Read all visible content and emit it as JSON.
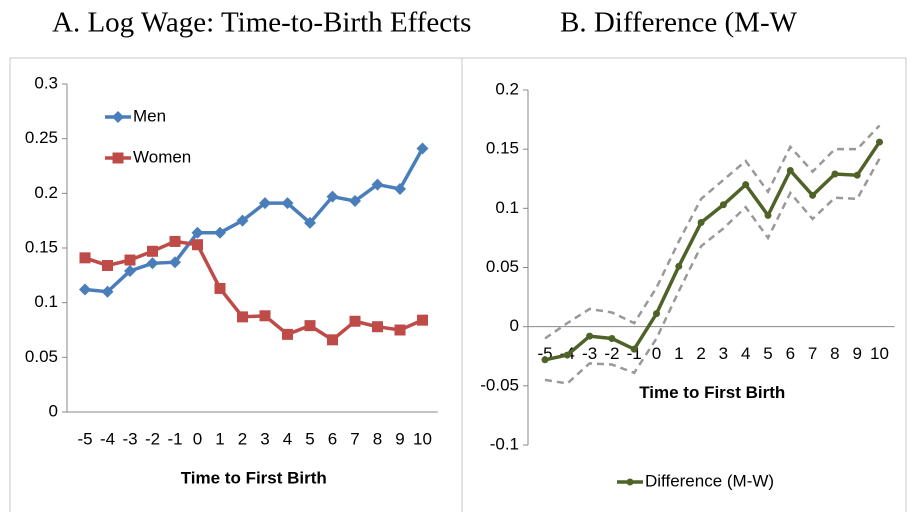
{
  "chart_data": [
    {
      "type": "line",
      "title": "A. Log Wage: Time-to-Birth Effects",
      "xlabel": "Time to First Birth",
      "categories": [
        "-5",
        "-4",
        "-3",
        "-2",
        "-1",
        "0",
        "1",
        "2",
        "3",
        "4",
        "5",
        "6",
        "7",
        "8",
        "9",
        "10"
      ],
      "series": [
        {
          "name": "Men",
          "color": "#4a7ebb",
          "marker": "diamond",
          "dashed": false,
          "values": [
            0.112,
            0.11,
            0.129,
            0.136,
            0.137,
            0.164,
            0.164,
            0.175,
            0.191,
            0.191,
            0.173,
            0.197,
            0.193,
            0.208,
            0.204,
            0.241
          ]
        },
        {
          "name": "Women",
          "color": "#be4b48",
          "marker": "square",
          "dashed": false,
          "values": [
            0.141,
            0.134,
            0.139,
            0.147,
            0.156,
            0.153,
            0.113,
            0.087,
            0.088,
            0.071,
            0.079,
            0.066,
            0.083,
            0.078,
            0.075,
            0.084
          ]
        }
      ],
      "ylim": [
        0,
        0.3
      ],
      "yticks": [
        0,
        0.05,
        0.1,
        0.15,
        0.2,
        0.25,
        0.3
      ],
      "grid": false,
      "legend": "upper left"
    },
    {
      "type": "line",
      "title": "B. Difference (M-W",
      "xlabel": "Time to First Birth",
      "categories": [
        "-5",
        "-4",
        "-3",
        "-2",
        "-1",
        "0",
        "1",
        "2",
        "3",
        "4",
        "5",
        "6",
        "7",
        "8",
        "9",
        "10"
      ],
      "series": [
        {
          "color": "#999999",
          "marker": "none",
          "dashed": true,
          "values": [
            -0.01,
            0.003,
            0.015,
            0.012,
            0.003,
            0.033,
            0.072,
            0.108,
            0.124,
            0.14,
            0.114,
            0.152,
            0.131,
            0.15,
            0.15,
            0.17
          ]
        },
        {
          "color": "#999999",
          "marker": "none",
          "dashed": true,
          "values": [
            -0.045,
            -0.048,
            -0.031,
            -0.032,
            -0.039,
            -0.01,
            0.03,
            0.068,
            0.083,
            0.101,
            0.075,
            0.113,
            0.091,
            0.109,
            0.108,
            0.142
          ]
        },
        {
          "name": "Difference (M-W)",
          "color": "#4f6228",
          "marker": "circle",
          "dashed": false,
          "values": [
            -0.028,
            -0.024,
            -0.008,
            -0.01,
            -0.019,
            0.011,
            0.051,
            0.088,
            0.103,
            0.12,
            0.094,
            0.132,
            0.111,
            0.129,
            0.128,
            0.156
          ]
        }
      ],
      "ylim": [
        -0.1,
        0.2
      ],
      "yticks": [
        -0.1,
        -0.05,
        0,
        0.05,
        0.1,
        0.15,
        0.2
      ],
      "grid": false,
      "legend": "lower center"
    }
  ]
}
